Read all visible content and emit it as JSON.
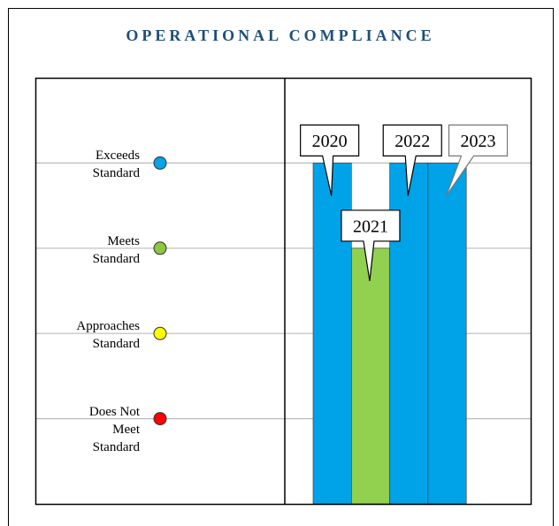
{
  "chart_data": {
    "type": "bar",
    "title": "OPERATIONAL COMPLIANCE",
    "categories": [
      "2020",
      "2021",
      "2022",
      "2023"
    ],
    "values": [
      4,
      3,
      4,
      4
    ],
    "colors": [
      "#00a2e8",
      "#92d050",
      "#00a2e8",
      "#00a2e8"
    ],
    "ylim": [
      0,
      5
    ],
    "yticks": [
      {
        "value": 1,
        "label": "Does Not\nMeet\nStandard"
      },
      {
        "value": 2,
        "label": "Approaches\nStandard"
      },
      {
        "value": 3,
        "label": "Meets\nStandard"
      },
      {
        "value": 4,
        "label": "Exceeds\nStandard"
      }
    ],
    "ytick_colors": [
      "#ff0000",
      "#ffff00",
      "#8dc63f",
      "#00a2e8"
    ],
    "grid": true
  }
}
